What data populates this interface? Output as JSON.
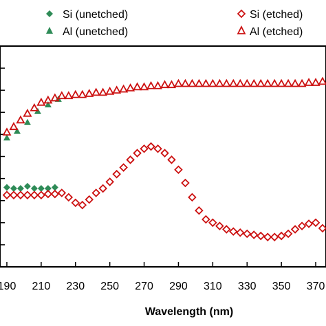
{
  "chart_data": {
    "type": "scatter",
    "title": "",
    "xlabel": "Wavelength (nm)",
    "ylabel": "",
    "x_ticks": [
      190,
      210,
      230,
      250,
      270,
      290,
      310,
      330,
      350,
      370
    ],
    "x_tick_labels": [
      "190",
      "210",
      "230",
      "250",
      "270",
      "290",
      "310",
      "330",
      "350",
      "370"
    ],
    "xlim": [
      186,
      376
    ],
    "ylim": [
      0,
      100
    ],
    "grid": false,
    "legend_position": "top",
    "series": [
      {
        "name": "Si (unetched)",
        "marker": "diamond-filled",
        "color": "#2e8b57",
        "x": [
          190,
          194,
          198,
          202,
          206,
          210,
          214,
          218
        ],
        "y": [
          36,
          35.5,
          35.5,
          36.5,
          35.5,
          35.5,
          35.5,
          36
        ]
      },
      {
        "name": "Al (unetched)",
        "marker": "triangle-filled",
        "color": "#2e8b57",
        "x": [
          190,
          196,
          202,
          208,
          214,
          220
        ],
        "y": [
          58.5,
          61.5,
          65.5,
          70.5,
          73.5,
          76
        ]
      },
      {
        "name": "Si (etched)",
        "marker": "diamond-open",
        "color": "#cc1111",
        "x": [
          190,
          194,
          198,
          202,
          206,
          210,
          214,
          218,
          222,
          226,
          230,
          234,
          238,
          242,
          246,
          250,
          254,
          258,
          262,
          266,
          270,
          274,
          278,
          282,
          286,
          290,
          294,
          298,
          302,
          306,
          310,
          314,
          318,
          322,
          326,
          330,
          334,
          338,
          342,
          346,
          350,
          354,
          358,
          362,
          366,
          370,
          374
        ],
        "y": [
          32.5,
          32.5,
          32.5,
          32.5,
          32.5,
          32.5,
          33,
          33,
          33.5,
          31.5,
          29,
          28,
          30.5,
          33.5,
          35.5,
          38.5,
          42,
          45,
          48.5,
          51.5,
          53.5,
          54.5,
          53.5,
          51.5,
          48.5,
          44,
          38,
          31.5,
          25.5,
          21.5,
          20,
          18.5,
          17,
          16,
          15.5,
          15,
          14.5,
          14,
          13.5,
          13.5,
          14,
          15,
          17,
          18.5,
          19.5,
          20,
          17.5
        ]
      },
      {
        "name": "Al (etched)",
        "marker": "triangle-open",
        "color": "#cc1111",
        "x": [
          190,
          194,
          198,
          202,
          206,
          210,
          214,
          218,
          222,
          226,
          230,
          234,
          238,
          242,
          246,
          250,
          254,
          258,
          262,
          266,
          270,
          274,
          278,
          282,
          286,
          290,
          294,
          298,
          302,
          306,
          310,
          314,
          318,
          322,
          326,
          330,
          334,
          338,
          342,
          346,
          350,
          354,
          358,
          362,
          366,
          370,
          374
        ],
        "y": [
          61,
          63.5,
          66.5,
          69.5,
          72,
          74.5,
          75.5,
          76.5,
          77.5,
          77.5,
          78,
          78,
          78.5,
          79,
          79,
          79.5,
          80,
          80.5,
          81,
          81.5,
          81.5,
          82,
          82,
          82.5,
          82.5,
          83,
          83,
          83,
          83,
          83,
          83,
          83,
          83,
          83,
          83,
          83,
          83,
          83,
          83,
          83,
          83,
          83,
          83,
          83,
          83.5,
          83.5,
          84
        ]
      }
    ]
  }
}
